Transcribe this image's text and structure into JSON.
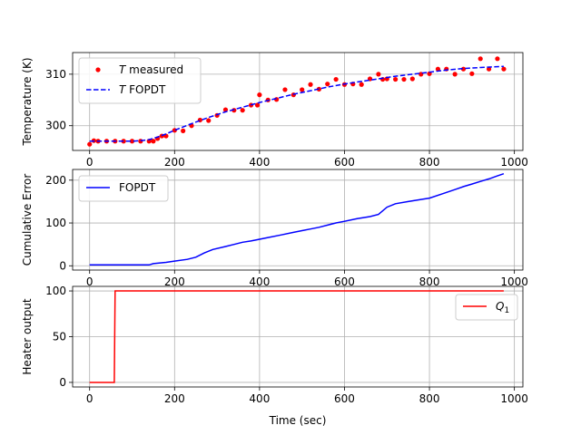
{
  "chart_data": [
    {
      "type": "scatter+line",
      "ylabel": "Temperature (K)",
      "xlim": [
        -40,
        1020
      ],
      "ylim": [
        295.2,
        314.2
      ],
      "xticks": [
        0,
        200,
        400,
        600,
        800,
        1000
      ],
      "yticks": [
        300,
        310
      ],
      "grid": true,
      "legend_position": "top-left",
      "series": [
        {
          "name": "T measured",
          "label_italic": "T",
          "label_rest": " measured",
          "kind": "scatter",
          "color": "#ff0000",
          "x": [
            0,
            10,
            20,
            40,
            60,
            80,
            100,
            120,
            140,
            150,
            160,
            170,
            180,
            200,
            220,
            240,
            260,
            280,
            300,
            320,
            340,
            360,
            380,
            395,
            400,
            420,
            440,
            460,
            480,
            500,
            520,
            540,
            560,
            580,
            600,
            620,
            640,
            660,
            680,
            690,
            700,
            720,
            740,
            760,
            780,
            800,
            820,
            840,
            860,
            880,
            900,
            920,
            940,
            960,
            975
          ],
          "y": [
            296.4,
            297.1,
            297.0,
            297.0,
            297.0,
            297.0,
            297.0,
            297.0,
            297.0,
            297.0,
            297.5,
            298.0,
            298.0,
            299.1,
            299.0,
            300.0,
            301.1,
            301.0,
            302.0,
            303.1,
            303.0,
            303.0,
            304.0,
            304.0,
            306.0,
            305.0,
            305.1,
            307.0,
            306.0,
            307.0,
            308.0,
            307.1,
            308.1,
            309.0,
            308.0,
            308.1,
            308.0,
            309.1,
            310.0,
            309.0,
            309.1,
            309.0,
            309.0,
            309.1,
            310.0,
            310.1,
            311.0,
            311.0,
            310.0,
            311.0,
            310.1,
            313.0,
            311.0,
            313.0,
            311.0
          ]
        },
        {
          "name": "T FOPDT",
          "label_italic": "T",
          "label_rest": " FOPDT",
          "kind": "dashed-line",
          "color": "#0000ff",
          "x": [
            0,
            60,
            80,
            100,
            120,
            140,
            160,
            180,
            200,
            240,
            280,
            320,
            360,
            400,
            440,
            480,
            520,
            560,
            600,
            640,
            680,
            720,
            760,
            800,
            840,
            880,
            920,
            975
          ],
          "y": [
            297.0,
            297.0,
            297.0,
            297.0,
            297.1,
            297.3,
            297.8,
            298.4,
            299.1,
            300.4,
            301.6,
            302.7,
            303.6,
            304.5,
            305.3,
            306.1,
            306.8,
            307.5,
            308.1,
            308.6,
            309.1,
            309.6,
            310.0,
            310.4,
            310.8,
            311.1,
            311.3,
            311.5
          ]
        }
      ]
    },
    {
      "type": "line",
      "ylabel": "Cumulative Error",
      "xlim": [
        -40,
        1020
      ],
      "ylim": [
        -10,
        225
      ],
      "xticks": [
        0,
        200,
        400,
        600,
        800,
        1000
      ],
      "yticks": [
        0,
        100,
        200
      ],
      "grid": true,
      "legend_position": "top-left",
      "series": [
        {
          "name": "FOPDT",
          "color": "#0000ff",
          "x": [
            0,
            50,
            100,
            140,
            150,
            180,
            200,
            230,
            250,
            270,
            290,
            320,
            340,
            360,
            380,
            400,
            420,
            450,
            480,
            500,
            520,
            540,
            560,
            580,
            600,
            630,
            660,
            680,
            700,
            720,
            750,
            780,
            800,
            830,
            860,
            880,
            900,
            920,
            940,
            960,
            975
          ],
          "y": [
            2,
            2,
            2,
            2,
            5,
            8,
            11,
            15,
            20,
            30,
            38,
            45,
            50,
            55,
            58,
            62,
            66,
            72,
            78,
            82,
            86,
            90,
            95,
            100,
            104,
            110,
            115,
            120,
            137,
            145,
            150,
            155,
            158,
            168,
            178,
            185,
            191,
            197,
            203,
            210,
            215
          ]
        }
      ]
    },
    {
      "type": "line",
      "ylabel": "Heater output",
      "xlabel": "Time (sec)",
      "xlim": [
        -40,
        1020
      ],
      "ylim": [
        -5,
        105
      ],
      "xticks": [
        0,
        200,
        400,
        600,
        800,
        1000
      ],
      "yticks": [
        0,
        50,
        100
      ],
      "grid": true,
      "legend_position": "upper-right",
      "series": [
        {
          "name": "Q1",
          "label_main": "Q",
          "label_sub": "1",
          "color": "#ff0000",
          "x": [
            0,
            58,
            60,
            975
          ],
          "y": [
            0,
            0,
            100,
            100
          ]
        }
      ]
    }
  ]
}
